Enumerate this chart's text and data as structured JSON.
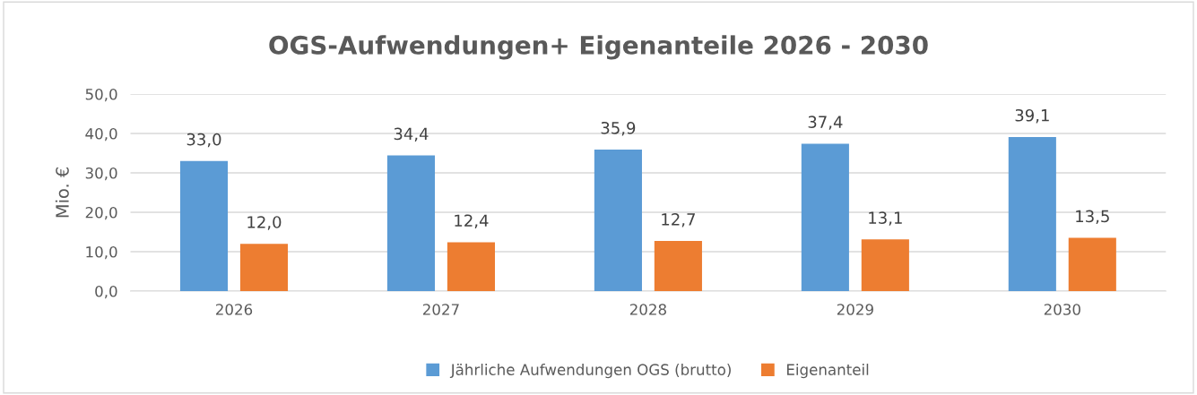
{
  "chart_data": {
    "type": "bar",
    "title": "OGS-Aufwendungen+ Eigenanteile 2026 - 2030",
    "ylabel": "Mio. €",
    "categories": [
      "2026",
      "2027",
      "2028",
      "2029",
      "2030"
    ],
    "series": [
      {
        "name": "Jährliche Aufwendungen OGS (brutto)",
        "color": "#5b9bd5",
        "values": [
          33.0,
          34.4,
          35.9,
          37.4,
          39.1
        ],
        "value_labels": [
          "33,0",
          "34,4",
          "35,9",
          "37,4",
          "39,1"
        ]
      },
      {
        "name": "Eigenanteil",
        "color": "#ed7d31",
        "values": [
          12.0,
          12.4,
          12.7,
          13.1,
          13.5
        ],
        "value_labels": [
          "12,0",
          "12,4",
          "12,7",
          "13,1",
          "13,5"
        ]
      }
    ],
    "ylim": [
      0,
      50
    ],
    "yticks": [
      {
        "value": 0,
        "label": "0,0"
      },
      {
        "value": 10,
        "label": "10,0"
      },
      {
        "value": 20,
        "label": "20,0"
      },
      {
        "value": 30,
        "label": "30,0"
      },
      {
        "value": 40,
        "label": "40,0"
      },
      {
        "value": 50,
        "label": "50,0"
      }
    ],
    "grid": "y",
    "legend": "bottom"
  }
}
